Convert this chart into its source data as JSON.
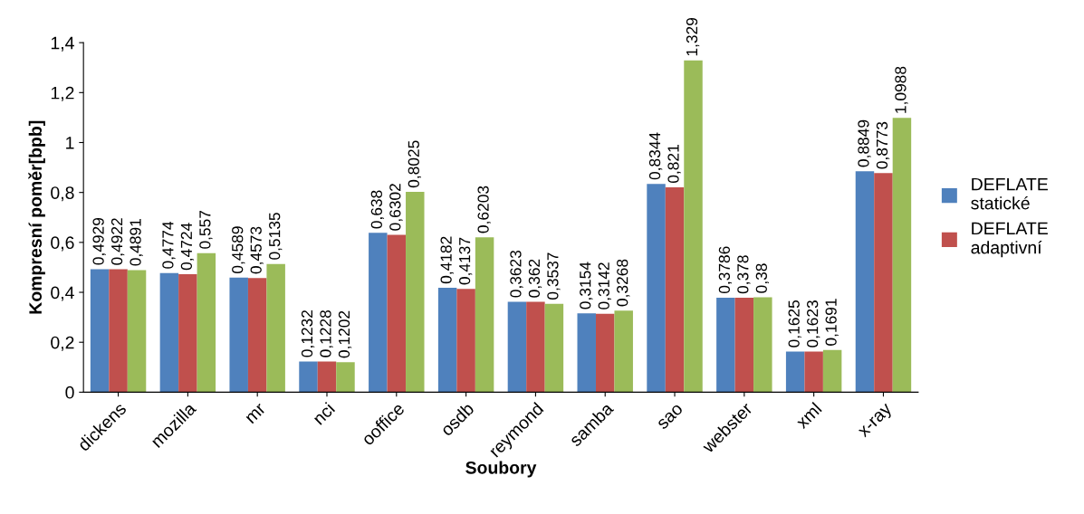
{
  "chart_data": {
    "type": "bar",
    "xlabel": "Soubory",
    "ylabel": "Kompresní poměr[bpb]",
    "categories": [
      "dickens",
      "mozilla",
      "mr",
      "nci",
      "ooffice",
      "osdb",
      "reymond",
      "samba",
      "sao",
      "webster",
      "xml",
      "x-ray"
    ],
    "series": [
      {
        "name": "DEFLATE statické",
        "color": "#4f81bd",
        "values": [
          0.4929,
          0.4774,
          0.4589,
          0.1232,
          0.638,
          0.4182,
          0.3623,
          0.3154,
          0.8344,
          0.3786,
          0.1625,
          0.8849
        ],
        "value_labels": [
          "0,4929",
          "0,4774",
          "0,4589",
          "0,1232",
          "0,638",
          "0,4182",
          "0,3623",
          "0,3154",
          "0,8344",
          "0,3786",
          "0,1625",
          "0,8849"
        ]
      },
      {
        "name": "DEFLATE adaptivní",
        "color": "#c0504d",
        "values": [
          0.4922,
          0.4724,
          0.4573,
          0.1228,
          0.6302,
          0.4137,
          0.362,
          0.3142,
          0.821,
          0.378,
          0.1623,
          0.8773
        ],
        "value_labels": [
          "0,4922",
          "0,4724",
          "0,4573",
          "0,1228",
          "0,6302",
          "0,4137",
          "0,362",
          "0,3142",
          "0,821",
          "0,378",
          "0,1623",
          "0,8773"
        ]
      },
      {
        "color": "#9bbb59",
        "values": [
          0.4891,
          0.557,
          0.5135,
          0.1202,
          0.8025,
          0.6203,
          0.3537,
          0.3268,
          1.329,
          0.38,
          0.1691,
          1.0988
        ],
        "value_labels": [
          "0,4891",
          "0,557",
          "0,5135",
          "0,1202",
          "0,8025",
          "0,6203",
          "0,3537",
          "0,3268",
          "1,329",
          "0,38",
          "0,1691",
          "1,0988"
        ]
      }
    ],
    "ylim": [
      0,
      1.4
    ],
    "yticks": [
      0,
      {
        "value": 0.2,
        "label": "0,2"
      },
      {
        "value": 0.4,
        "label": "0,4"
      },
      {
        "value": 0.6,
        "label": "0,6"
      },
      {
        "value": 0.8,
        "label": "0,8"
      },
      1,
      {
        "value": 1.2,
        "label": "1,2"
      },
      {
        "value": 1.4,
        "label": "1,4"
      }
    ],
    "grid": false,
    "legend": "right"
  }
}
